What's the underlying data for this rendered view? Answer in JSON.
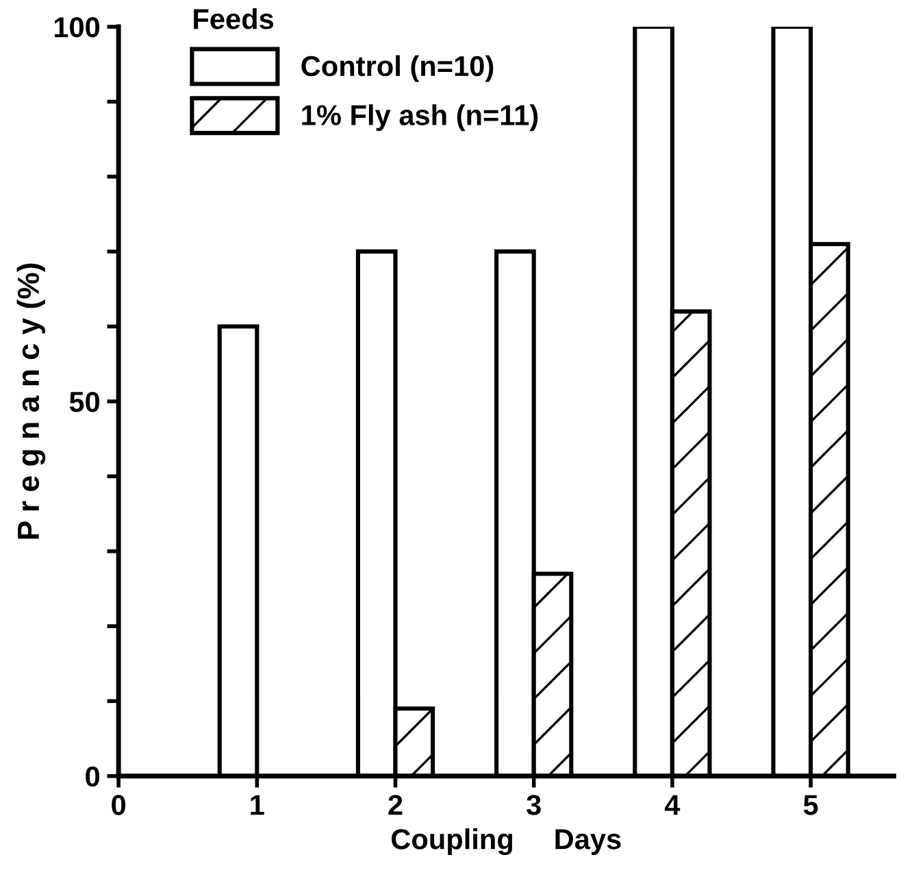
{
  "chart_data": {
    "type": "bar",
    "xlabel": "Coupling     Days",
    "ylabel": "P r e g n a n c y (%)",
    "legend_title": "Feeds",
    "legend": "top left",
    "x": [
      1,
      2,
      3,
      4,
      5
    ],
    "series": [
      {
        "name": "Control (n=10)",
        "color": "#ffffff",
        "values": [
          60,
          70,
          70,
          100,
          100
        ]
      },
      {
        "name": "1% Fly ash (n=11)",
        "color": "#000000",
        "values": [
          null,
          9,
          27,
          62,
          71
        ]
      }
    ],
    "xlim": [
      0,
      5.6
    ],
    "xticks": [
      0,
      1,
      2,
      3,
      4,
      5
    ],
    "ylim": [
      0,
      100
    ],
    "yticks": [
      0,
      {
        "value": 10,
        "label": null
      },
      {
        "value": 20,
        "label": null
      },
      {
        "value": 30,
        "label": null
      },
      {
        "value": 40,
        "label": null
      },
      50,
      {
        "value": 60,
        "label": null
      },
      {
        "value": 70,
        "label": null
      },
      {
        "value": 80,
        "label": null
      },
      {
        "value": 90,
        "label": null
      },
      100
    ]
  }
}
